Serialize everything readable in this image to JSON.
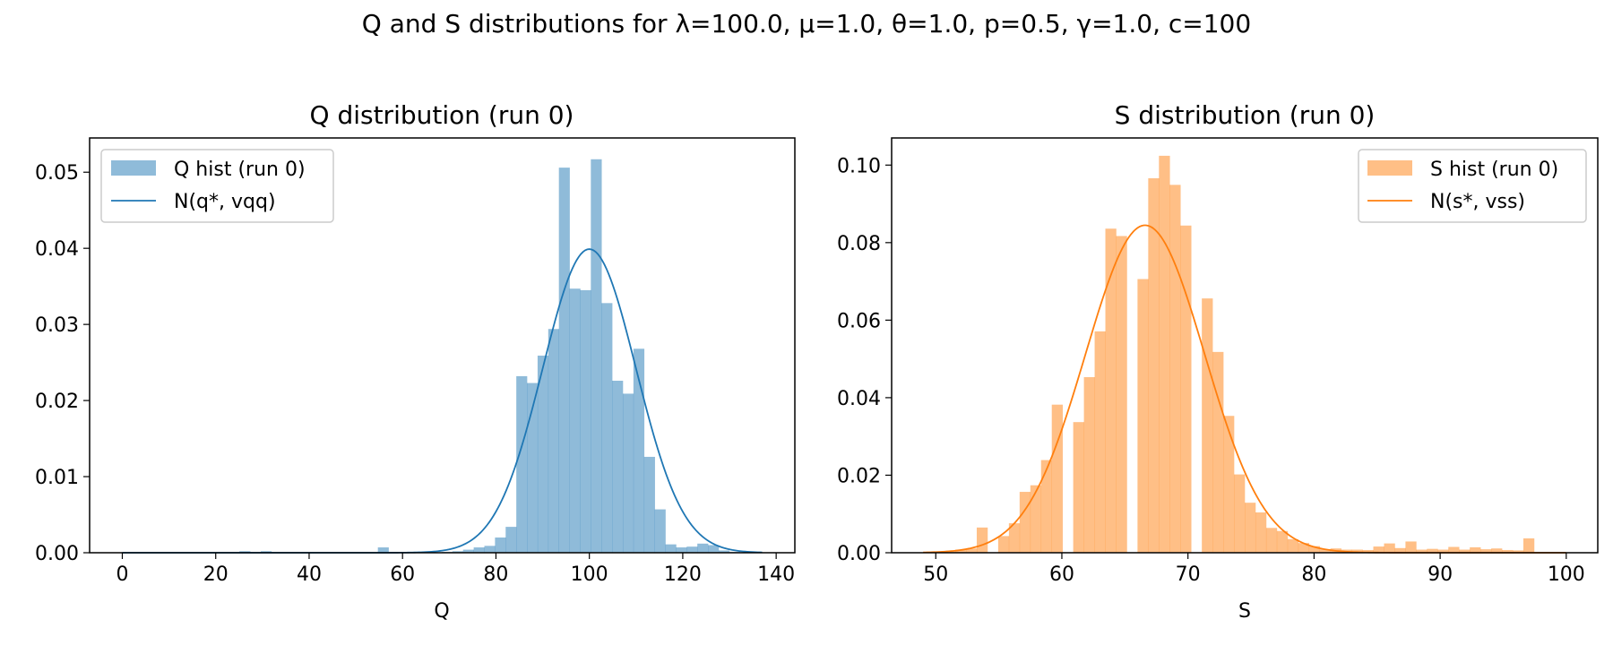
{
  "figure": {
    "suptitle": "Q and S distributions for λ=100.0, μ=1.0, θ=1.0, p=0.5, γ=1.0, c=100"
  },
  "chart_data": [
    {
      "type": "bar",
      "title": "Q distribution (run 0)",
      "xlabel": "Q",
      "ylabel": "",
      "xlim": [
        -7,
        144
      ],
      "ylim": [
        0,
        0.0545
      ],
      "xticks": [
        0,
        20,
        40,
        60,
        80,
        100,
        120,
        140
      ],
      "xtick_labels": [
        "0",
        "20",
        "40",
        "60",
        "80",
        "100",
        "120",
        "140"
      ],
      "yticks": [
        0,
        0.01,
        0.02,
        0.03,
        0.04,
        0.05
      ],
      "ytick_labels": [
        "0.00",
        "0.01",
        "0.02",
        "0.03",
        "0.04",
        "0.05"
      ],
      "grid": false,
      "legend_position": "upper left",
      "legend": [
        "Q hist (run 0)",
        "N(q*, vqq)"
      ],
      "hist": {
        "name": "Q hist (run 0)",
        "color": "#1f77b4",
        "alpha": 0.5,
        "bin_start": 0,
        "bin_width": 2.28,
        "values": [
          0,
          0,
          0,
          0,
          0,
          0,
          0,
          0,
          0,
          0,
          0,
          0.0002,
          0,
          0.0002,
          0,
          0,
          0,
          0,
          0,
          0,
          0,
          0,
          0,
          0,
          0.0007,
          0,
          0,
          0,
          0,
          0,
          0.0001,
          0.0002,
          0.0004,
          0.0007,
          0.0009,
          0.002,
          0.0034,
          0.0232,
          0.0223,
          0.0259,
          0.0294,
          0.0506,
          0.0347,
          0.0345,
          0.0517,
          0.0328,
          0.0226,
          0.0209,
          0.0268,
          0.0126,
          0.0057,
          0.0011,
          0.0007,
          0.0008,
          0.0012,
          0.001,
          0.0003,
          0.0001,
          0,
          0
        ]
      },
      "curve": {
        "name": "N(q*, vqq)",
        "color": "#1f77b4",
        "mean": 100,
        "variance": 100,
        "x_range": [
          0,
          137
        ]
      }
    },
    {
      "type": "bar",
      "title": "S distribution (run 0)",
      "xlabel": "S",
      "ylabel": "",
      "xlim": [
        46.5,
        102.5
      ],
      "ylim": [
        0,
        0.107
      ],
      "xticks": [
        50,
        60,
        70,
        80,
        90,
        100
      ],
      "xtick_labels": [
        "50",
        "60",
        "70",
        "80",
        "90",
        "100"
      ],
      "yticks": [
        0,
        0.02,
        0.04,
        0.06,
        0.08,
        0.1
      ],
      "ytick_labels": [
        "0.00",
        "0.02",
        "0.04",
        "0.06",
        "0.08",
        "0.10"
      ],
      "grid": false,
      "legend_position": "upper right",
      "legend": [
        "S hist (run 0)",
        "N(s*, vss)"
      ],
      "hist": {
        "name": "S hist (run 0)",
        "color": "#ff7f0e",
        "alpha": 0.5,
        "bin_start": 49,
        "bin_width": 0.85,
        "values": [
          0,
          0,
          0.0003,
          0.0008,
          0.0011,
          0.0065,
          0,
          0.0043,
          0.0076,
          0.0157,
          0.0174,
          0.0239,
          0.0382,
          0,
          0.0337,
          0.0453,
          0.0571,
          0.0836,
          0.0817,
          0,
          0.0706,
          0.0966,
          0.1024,
          0.0949,
          0.0844,
          0,
          0.0656,
          0.0518,
          0.0353,
          0.0202,
          0.0129,
          0.0104,
          0.0064,
          0.0056,
          0.0035,
          0.0025,
          0.0017,
          0.0009,
          0.0011,
          0.0008,
          0.0008,
          0.0007,
          0.0016,
          0.0024,
          0.0012,
          0.0029,
          0.0008,
          0.001,
          0.0008,
          0.0015,
          0.0008,
          0.0014,
          0.0009,
          0.0011,
          0.0007,
          0.0006,
          0.0037
        ]
      },
      "curve": {
        "name": "N(s*, vss)",
        "color": "#ff7f0e",
        "mean": 66.6,
        "variance": 22.3,
        "x_range": [
          49,
          100
        ]
      }
    }
  ]
}
